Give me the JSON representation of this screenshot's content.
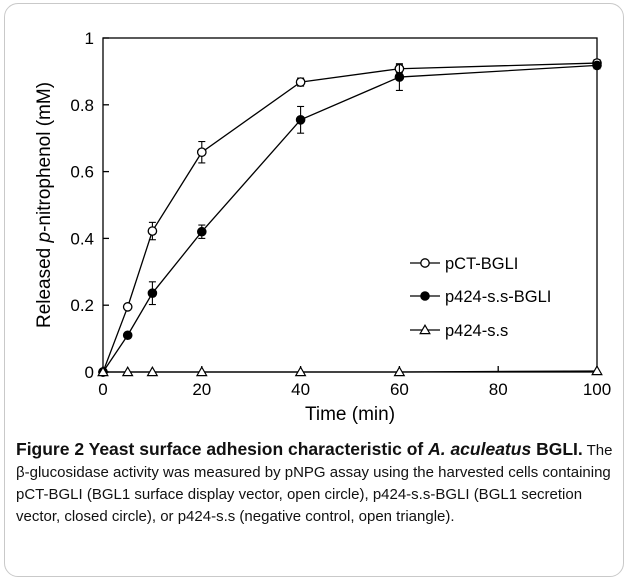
{
  "chart_data": {
    "type": "line",
    "xlabel": "Time (min)",
    "ylabel_before": "Released ",
    "ylabel_italic": "p",
    "ylabel_after": "-nitrophenol (mM)",
    "xlim": [
      0,
      100
    ],
    "ylim": [
      0,
      1
    ],
    "xticks": [
      0,
      20,
      40,
      60,
      80,
      100
    ],
    "yticks": [
      0,
      0.2,
      0.4,
      0.6,
      0.8,
      1
    ],
    "ytick_labels": [
      "0",
      "0.2",
      "0.4",
      "0.6",
      "0.8",
      "1"
    ],
    "grid": false,
    "legend_position": "bottom-right",
    "series": [
      {
        "name": "pCT-BGLI",
        "marker": "open-circle",
        "x": [
          0,
          5,
          10,
          20,
          40,
          60,
          100
        ],
        "y": [
          0,
          0.195,
          0.422,
          0.658,
          0.868,
          0.908,
          0.925
        ],
        "err": [
          0,
          0,
          0.026,
          0.032,
          0.012,
          0.012,
          0.01
        ]
      },
      {
        "name": "p424-s.s-BGLI",
        "marker": "filled-circle",
        "x": [
          0,
          5,
          10,
          20,
          40,
          60,
          100
        ],
        "y": [
          0,
          0.11,
          0.236,
          0.42,
          0.755,
          0.883,
          0.918
        ],
        "err": [
          0,
          0,
          0.034,
          0.02,
          0.04,
          0.04,
          0.01
        ]
      },
      {
        "name": "p424-s.s",
        "marker": "open-triangle",
        "x": [
          0,
          5,
          10,
          20,
          40,
          60,
          100
        ],
        "y": [
          0,
          0,
          0,
          0,
          0,
          0,
          0.003
        ],
        "err": [
          0,
          0,
          0,
          0,
          0,
          0,
          0
        ]
      }
    ]
  },
  "caption": {
    "lead_prefix": "Figure 2 Yeast surface adhesion characteristic of ",
    "lead_italic": "A. aculeatus",
    "lead_suffix": "BGLI.",
    "body": " The β-glucosidase activity was measured by pNPG assay using the harvested cells containing pCT-BGLI (BGL1 surface display vector, open circle), p424-s.s-BGLI (BGL1 secretion vector, closed circle), or p424-s.s (negative control, open triangle)."
  }
}
